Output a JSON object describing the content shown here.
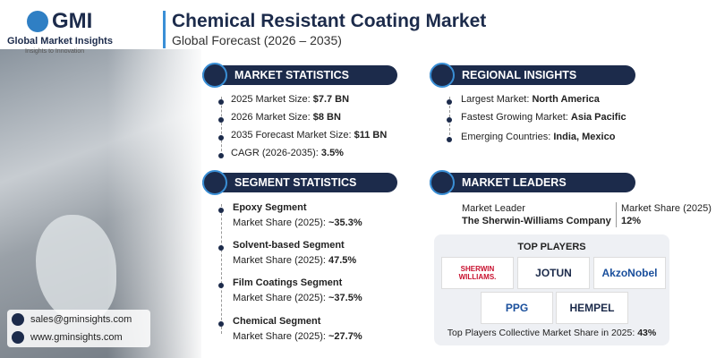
{
  "header": {
    "logo_text": "GMI",
    "company": "Global Market Insights",
    "tagline": "Insights to Innovation",
    "title": "Chemical Resistant Coating Market",
    "subtitle": "Global Forecast (2026 – 2035)"
  },
  "market_statistics": {
    "heading": "MARKET STATISTICS",
    "items": [
      {
        "label": "2025 Market Size:",
        "value": "$7.7 BN"
      },
      {
        "label": "2026 Market Size:",
        "value": "$8 BN"
      },
      {
        "label": "2035 Forecast Market Size:",
        "value": "$11 BN"
      },
      {
        "label": "CAGR (2026-2035):",
        "value": "3.5%"
      }
    ]
  },
  "regional_insights": {
    "heading": "REGIONAL INSIGHTS",
    "items": [
      {
        "label": "Largest Market:",
        "value": "North America"
      },
      {
        "label": "Fastest Growing Market:",
        "value": "Asia Pacific"
      },
      {
        "label": "Emerging Countries:",
        "value": "India, Mexico"
      }
    ]
  },
  "segment_statistics": {
    "heading": "SEGMENT STATISTICS",
    "items": [
      {
        "name": "Epoxy Segment",
        "label": "Market Share (2025):",
        "value": "~35.3%"
      },
      {
        "name": "Solvent-based Segment",
        "label": "Market Share (2025):",
        "value": "47.5%"
      },
      {
        "name": "Film Coatings Segment",
        "label": "Market Share (2025):",
        "value": "~37.5%"
      },
      {
        "name": "Chemical Segment",
        "label": "Market Share (2025):",
        "value": "~27.7%"
      }
    ]
  },
  "market_leaders": {
    "heading": "MARKET LEADERS",
    "leader_label": "Market Leader",
    "leader": "The Sherwin-Williams Company",
    "share_label": "Market Share (2025)",
    "share": "12%"
  },
  "top_players": {
    "heading": "TOP PLAYERS",
    "logos": [
      {
        "line1": "SHERWIN",
        "line2": "WILLIAMS."
      },
      {
        "line1": "JOTUN"
      },
      {
        "line1": "AkzoNobel"
      },
      {
        "line1": "PPG"
      },
      {
        "line1": "HEMPEL"
      }
    ],
    "footer_label": "Top Players Collective Market Share in 2025:",
    "footer_value": "43%"
  },
  "contact": {
    "email": "sales@gminsights.com",
    "website": "www.gminsights.com"
  }
}
